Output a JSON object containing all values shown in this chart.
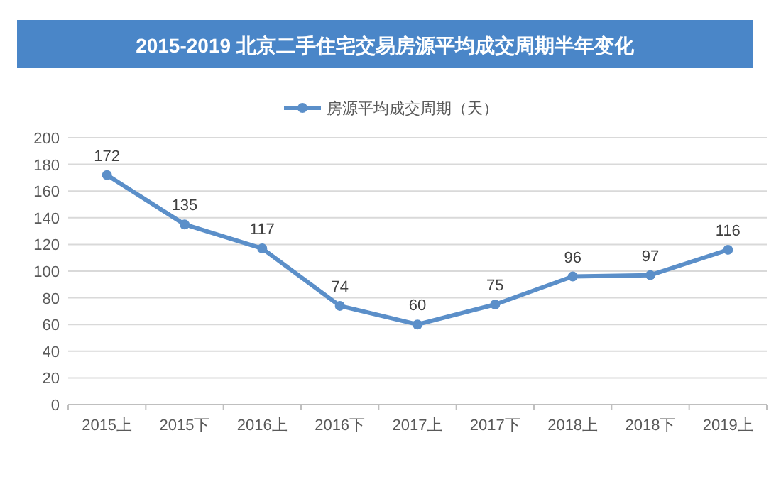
{
  "chart_data": {
    "type": "line",
    "title": "2015-2019 北京二手住宅交易房源平均成交周期半年变化",
    "categories": [
      "2015上",
      "2015下",
      "2016上",
      "2016下",
      "2017上",
      "2017下",
      "2018上",
      "2018下",
      "2019上"
    ],
    "series": [
      {
        "name": "房源平均成交周期（天）",
        "color": "#5b8fc9",
        "values": [
          172,
          135,
          117,
          74,
          60,
          75,
          96,
          97,
          116
        ]
      }
    ],
    "ylim": [
      0,
      200
    ],
    "yticks": [
      0,
      20,
      40,
      60,
      80,
      100,
      120,
      140,
      160,
      180,
      200
    ],
    "grid": "y",
    "legend": "top",
    "marker": "circle",
    "line_style": "solid",
    "data_labels": true
  }
}
